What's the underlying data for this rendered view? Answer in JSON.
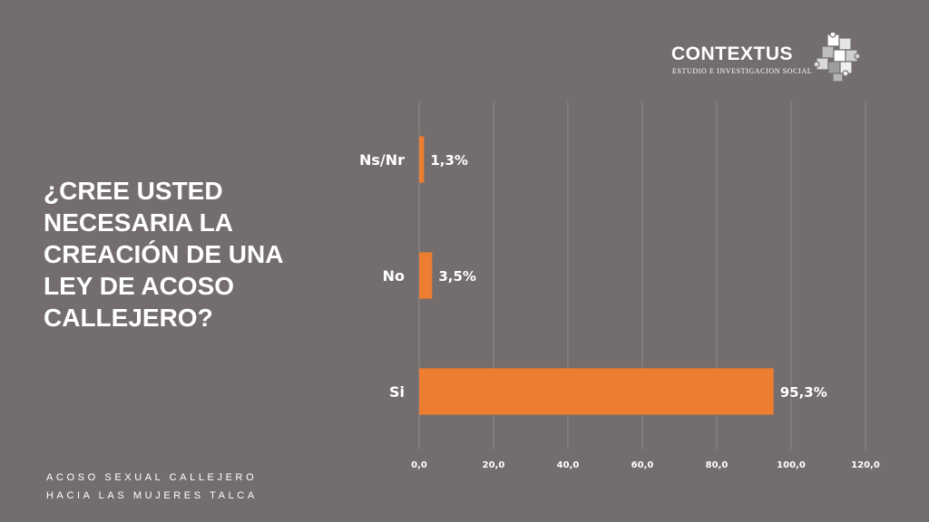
{
  "brand": {
    "name": "CONTEXTUS",
    "tagline": "ESTUDIO E INVESTIGACION SOCIAL"
  },
  "question": "¿CREE USTED NECESARIA LA CREACIÓN DE UNA LEY DE ACOSO CALLEJERO?",
  "footer": {
    "line1": "ACOSO SEXUAL CALLEJERO",
    "line2": "HACIA LAS MUJERES TALCA"
  },
  "chart_data": {
    "type": "bar",
    "orientation": "horizontal",
    "categories": [
      "Ns/Nr",
      "No",
      "Si"
    ],
    "values": [
      1.3,
      3.5,
      95.3
    ],
    "data_labels": [
      "1,3%",
      "3,5%",
      "95,3%"
    ],
    "xlim": [
      0,
      120
    ],
    "xticks": [
      0,
      20,
      40,
      60,
      80,
      100,
      120
    ],
    "xtick_labels": [
      "0,0",
      "20,0",
      "40,0",
      "60,0",
      "80,0",
      "100,0",
      "120,0"
    ],
    "bar_color": "#ed7d31",
    "grid": true,
    "legend": "none"
  }
}
